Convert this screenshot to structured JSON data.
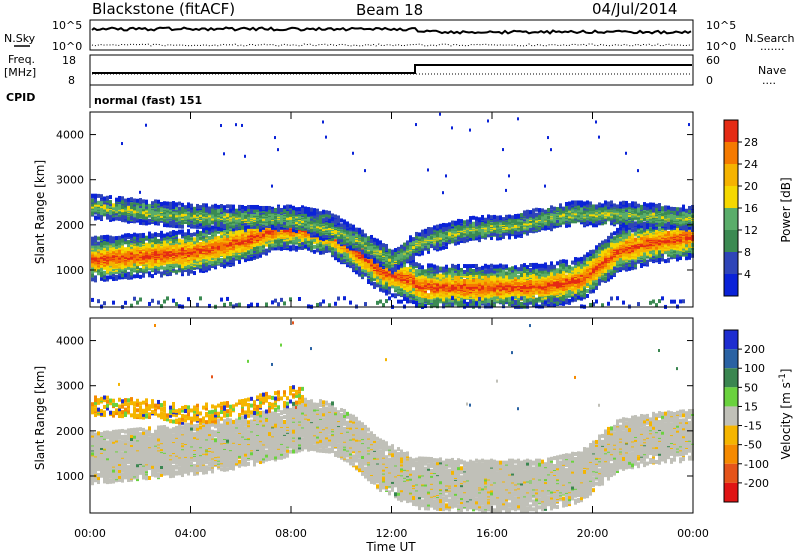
{
  "header": {
    "station": "Blackstone (fitACF)",
    "beam": "Beam 18",
    "date": "04/Jul/2014"
  },
  "noise_panel": {
    "left_label": "N.Sky",
    "right_label": "N.Search",
    "left_ticks": [
      "10^5",
      "10^0"
    ],
    "right_ticks": [
      "10^5",
      "10^0"
    ],
    "right_legend_line": "......."
  },
  "freq_panel": {
    "left_label_line1": "Freq.",
    "left_label_line2": "[MHz]",
    "left_ticks": [
      "18",
      "8"
    ],
    "right_label": "Nave",
    "right_ticks": [
      "60",
      "0"
    ],
    "right_legend_line": "....",
    "cpid_label": "CPID",
    "cpid_text": "normal (fast) 151"
  },
  "colors": {
    "power_scale": [
      "#0a22d8",
      "#2f45b8",
      "#3b8a52",
      "#5aad6a",
      "#f5d800",
      "#f5b300",
      "#f57a00",
      "#e52b14"
    ],
    "velocity_scale": [
      "#1e2dd0",
      "#2a62a3",
      "#3a8650",
      "#6ad23e",
      "#c0c0b8",
      "#f5b500",
      "#f58a00",
      "#e5541a",
      "#e01414"
    ],
    "background": "#ffffff"
  },
  "chart_data": [
    {
      "type": "heatmap",
      "title": "",
      "xlabel": "",
      "ylabel": "Slant Range [km]",
      "x_ticks": [
        "00:00",
        "04:00",
        "08:00",
        "12:00",
        "16:00",
        "20:00",
        "00:00"
      ],
      "x_range_hours": [
        0,
        24
      ],
      "y_ticks": [
        1000,
        2000,
        3000,
        4000
      ],
      "ylim": [
        180,
        4500
      ],
      "colorbar": {
        "label": "Power [dB]",
        "ticks": [
          4,
          8,
          12,
          16,
          20,
          24,
          28
        ],
        "range": [
          0,
          30
        ]
      },
      "bands": [
        {
          "name": "main",
          "points": [
            [
              0.2,
              1250
            ],
            [
              2,
              1330
            ],
            [
              4,
              1400
            ],
            [
              6,
              1650
            ],
            [
              7.5,
              1950
            ],
            [
              8.5,
              1920
            ],
            [
              9.5,
              1820
            ],
            [
              10.5,
              1450
            ],
            [
              11.5,
              1000
            ],
            [
              12.8,
              780
            ],
            [
              13,
              640
            ],
            [
              15,
              620
            ],
            [
              18,
              650
            ],
            [
              19.5,
              800
            ],
            [
              21,
              1450
            ],
            [
              22.5,
              1650
            ],
            [
              23.8,
              1750
            ]
          ],
          "width": 480,
          "peak_db": 28
        },
        {
          "name": "upper",
          "points": [
            [
              0.2,
              2400
            ],
            [
              2,
              2300
            ],
            [
              4,
              2200
            ],
            [
              6,
              2150
            ],
            [
              8,
              2150
            ],
            [
              9.5,
              1900
            ],
            [
              10.5,
              1700
            ],
            [
              12,
              1200
            ],
            [
              13,
              1600
            ],
            [
              15,
              1900
            ],
            [
              17,
              2000
            ],
            [
              19,
              2250
            ],
            [
              21,
              2250
            ],
            [
              23.8,
              2150
            ]
          ],
          "width": 260,
          "peak_db": 14
        }
      ],
      "grid": false
    },
    {
      "type": "heatmap",
      "title": "",
      "xlabel": "Time UT",
      "ylabel": "Slant Range [km]",
      "x_ticks": [
        "00:00",
        "04:00",
        "08:00",
        "12:00",
        "16:00",
        "20:00",
        "00:00"
      ],
      "x_range_hours": [
        0,
        24
      ],
      "y_ticks": [
        1000,
        2000,
        3000,
        4000
      ],
      "ylim": [
        180,
        4500
      ],
      "colorbar": {
        "label": "Velocity [m s^-1]",
        "ticks": [
          "200",
          "100",
          "50",
          "15",
          "-15",
          "-50",
          "-100",
          "-200"
        ],
        "range": [
          -250,
          250
        ]
      },
      "bands": [
        {
          "name": "ground-scatter",
          "points": [
            [
              0.2,
              1400
            ],
            [
              2,
              1500
            ],
            [
              4,
              1600
            ],
            [
              6,
              1750
            ],
            [
              7.5,
              1950
            ],
            [
              8.5,
              2150
            ],
            [
              9.5,
              2100
            ],
            [
              10.5,
              1750
            ],
            [
              11.5,
              1250
            ],
            [
              12.8,
              900
            ],
            [
              13,
              850
            ],
            [
              15,
              800
            ],
            [
              18,
              800
            ],
            [
              19.5,
              1000
            ],
            [
              21,
              1700
            ],
            [
              22.5,
              1850
            ],
            [
              23.8,
              1900
            ]
          ],
          "width": 560,
          "velocity": 0
        },
        {
          "name": "ionospheric",
          "points": [
            [
              0.5,
              2550
            ],
            [
              2,
              2500
            ],
            [
              4,
              2350
            ],
            [
              6,
              2500
            ],
            [
              7.5,
              2700
            ],
            [
              8.2,
              2800
            ]
          ],
          "width": 200,
          "velocity": -60
        }
      ],
      "grid": false
    }
  ],
  "axes": {
    "time_label": "Time UT",
    "velocity_unit_sup": "-1",
    "velocity_label_base": "Velocity [m s"
  }
}
